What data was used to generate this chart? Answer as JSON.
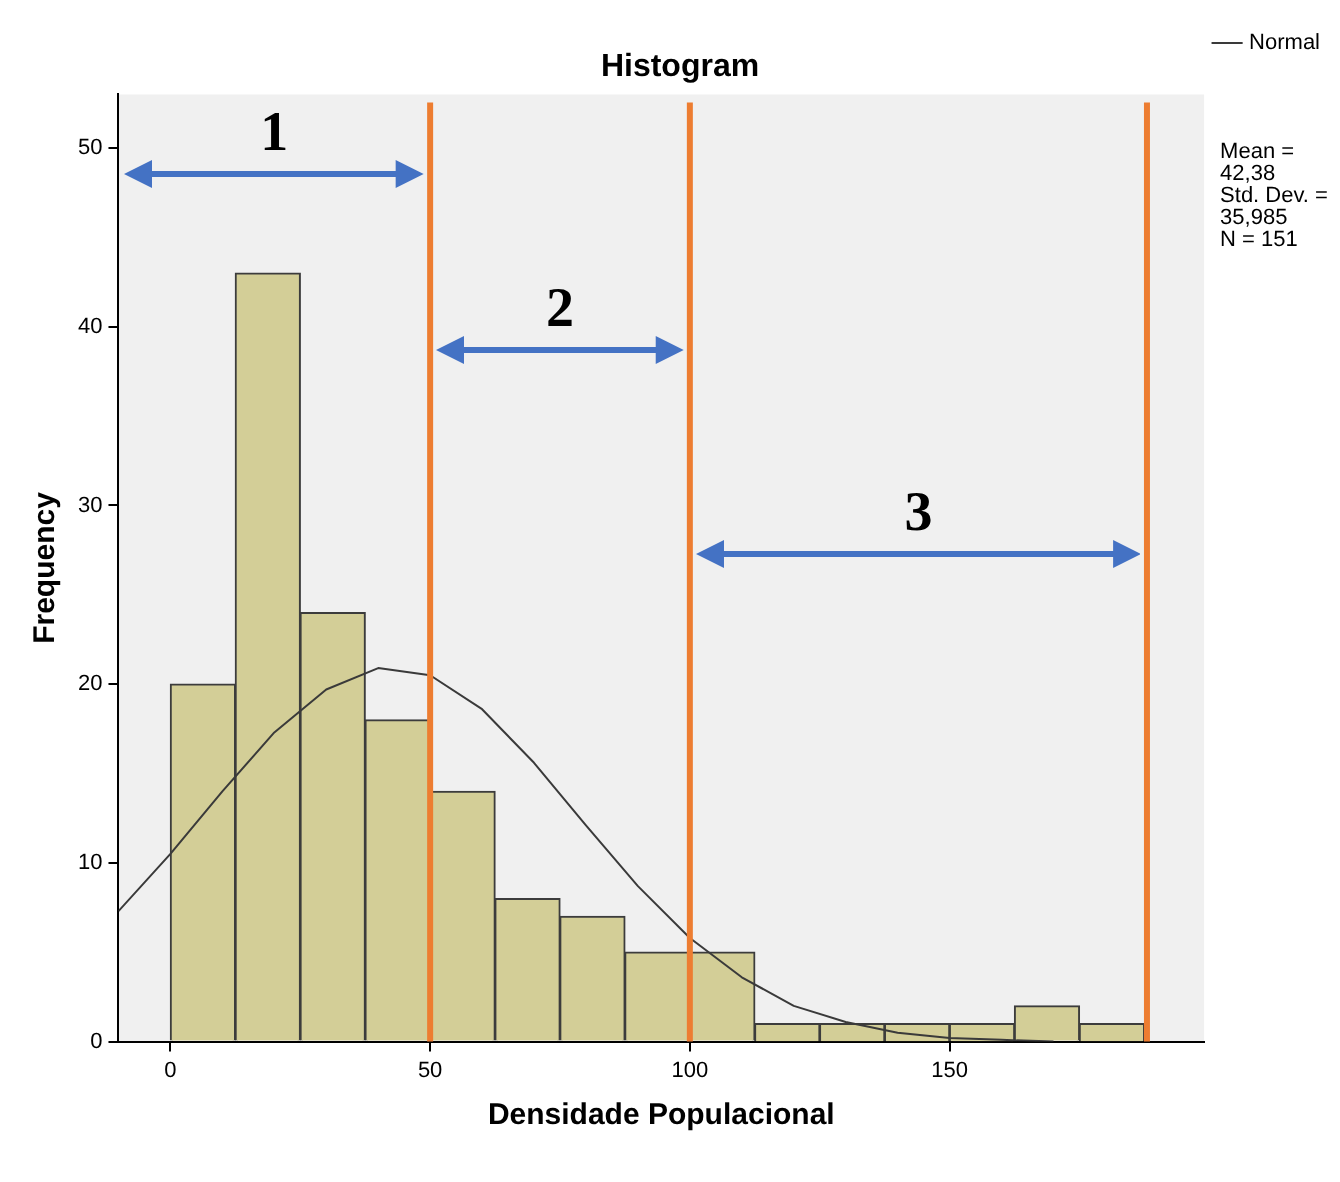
{
  "chart_data": {
    "type": "histogram",
    "title": "Histogram",
    "xlabel": "Densidade Populacional",
    "ylabel": "Frequency",
    "bins": [
      0,
      12.5,
      25,
      37.5,
      50,
      62.5,
      75,
      87.5,
      100,
      112.5,
      125,
      137.5,
      150,
      162.5,
      175,
      187.5
    ],
    "values": [
      20,
      43,
      24,
      18,
      14,
      8,
      7,
      5,
      5,
      1,
      1,
      1,
      1,
      2,
      1
    ],
    "color": "#d3ce97",
    "series": [
      {
        "type": "line",
        "name": "Normal",
        "color": "#3a3a3a",
        "x": [
          -10,
          0,
          10,
          20,
          30,
          40,
          50,
          60,
          70,
          80,
          90,
          100,
          110,
          120,
          130,
          140,
          150,
          160,
          170
        ],
        "values": [
          7.3,
          10.5,
          14,
          17.3,
          19.7,
          20.9,
          20.5,
          18.6,
          15.6,
          12.1,
          8.7,
          5.8,
          3.6,
          2,
          1.1,
          0.5,
          0.2,
          0.1,
          0
        ]
      }
    ],
    "xlim": [
      -10,
      199
    ],
    "xticks": [
      0,
      50,
      100,
      150
    ],
    "ylim": [
      0,
      53
    ],
    "yticks": [
      0,
      10,
      20,
      30,
      40,
      50
    ],
    "grid": false,
    "legend": "top right",
    "marker": "none",
    "ref_lines": [
      {
        "axis": "x",
        "value": 50,
        "color": "#ed7d31"
      },
      {
        "axis": "x",
        "value": 100,
        "color": "#ed7d31"
      },
      {
        "axis": "x",
        "value": 188,
        "color": "#ed7d31"
      }
    ],
    "annotations": [
      "1",
      "2",
      "3",
      "Mean = 42,38",
      "Std. Dev. = 35,985",
      "N = 151"
    ]
  }
}
